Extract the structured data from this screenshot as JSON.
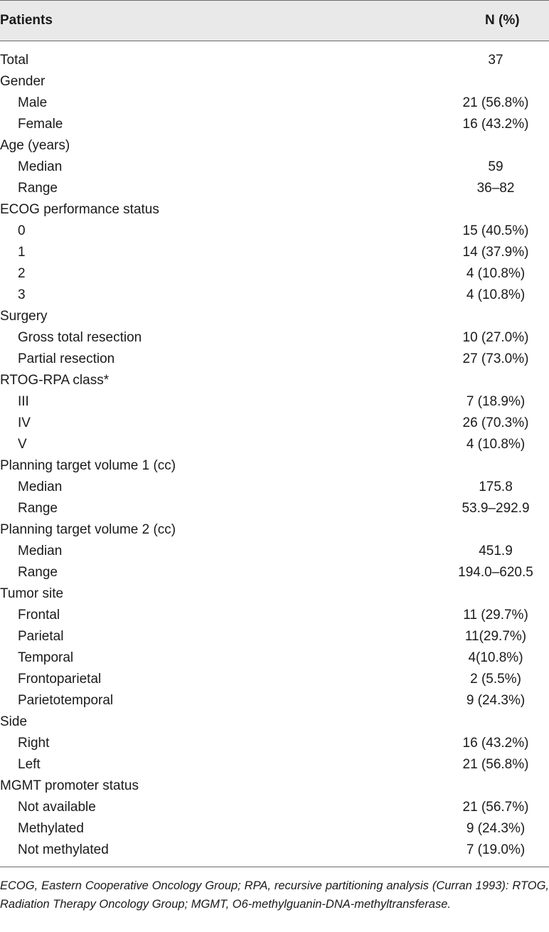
{
  "table": {
    "header": {
      "label": "Patients",
      "value": "N (%)"
    },
    "rows": [
      {
        "label": "Total",
        "value": "37",
        "indent": false
      },
      {
        "label": "Gender",
        "value": "",
        "indent": false
      },
      {
        "label": "Male",
        "value": "21 (56.8%)",
        "indent": true
      },
      {
        "label": "Female",
        "value": "16 (43.2%)",
        "indent": true
      },
      {
        "label": "Age (years)",
        "value": "",
        "indent": false
      },
      {
        "label": "Median",
        "value": "59",
        "indent": true
      },
      {
        "label": "Range",
        "value": "36–82",
        "indent": true
      },
      {
        "label": "ECOG performance status",
        "value": "",
        "indent": false
      },
      {
        "label": "0",
        "value": "15 (40.5%)",
        "indent": true
      },
      {
        "label": "1",
        "value": "14 (37.9%)",
        "indent": true
      },
      {
        "label": "2",
        "value": "4 (10.8%)",
        "indent": true
      },
      {
        "label": "3",
        "value": "4 (10.8%)",
        "indent": true
      },
      {
        "label": "Surgery",
        "value": "",
        "indent": false
      },
      {
        "label": "Gross total resection",
        "value": "10 (27.0%)",
        "indent": true
      },
      {
        "label": "Partial resection",
        "value": "27 (73.0%)",
        "indent": true
      },
      {
        "label": "RTOG-RPA class*",
        "value": "",
        "indent": false
      },
      {
        "label": "III",
        "value": "7 (18.9%)",
        "indent": true
      },
      {
        "label": "IV",
        "value": "26 (70.3%)",
        "indent": true
      },
      {
        "label": "V",
        "value": "4 (10.8%)",
        "indent": true
      },
      {
        "label": "Planning target volume 1 (cc)",
        "value": "",
        "indent": false
      },
      {
        "label": "Median",
        "value": "175.8",
        "indent": true
      },
      {
        "label": "Range",
        "value": "53.9–292.9",
        "indent": true
      },
      {
        "label": "Planning target volume 2 (cc)",
        "value": "",
        "indent": false
      },
      {
        "label": "Median",
        "value": "451.9",
        "indent": true
      },
      {
        "label": "Range",
        "value": "194.0–620.5",
        "indent": true
      },
      {
        "label": "Tumor site",
        "value": "",
        "indent": false
      },
      {
        "label": "Frontal",
        "value": "11 (29.7%)",
        "indent": true
      },
      {
        "label": "Parietal",
        "value": "11(29.7%)",
        "indent": true
      },
      {
        "label": "Temporal",
        "value": "4(10.8%)",
        "indent": true
      },
      {
        "label": "Frontoparietal",
        "value": "2 (5.5%)",
        "indent": true
      },
      {
        "label": "Parietotemporal",
        "value": "9 (24.3%)",
        "indent": true
      },
      {
        "label": "Side",
        "value": "",
        "indent": false
      },
      {
        "label": "Right",
        "value": "16 (43.2%)",
        "indent": true
      },
      {
        "label": "Left",
        "value": "21 (56.8%)",
        "indent": true
      },
      {
        "label": "MGMT promoter status",
        "value": "",
        "indent": false
      },
      {
        "label": "Not available",
        "value": "21 (56.7%)",
        "indent": true
      },
      {
        "label": "Methylated",
        "value": "9 (24.3%)",
        "indent": true
      },
      {
        "label": "Not methylated",
        "value": "7 (19.0%)",
        "indent": true
      }
    ],
    "footnote": "ECOG, Eastern Cooperative Oncology Group; RPA, recursive partitioning analysis (Curran 1993): RTOG, Radiation Therapy Oncology Group; MGMT, O6-methylguanin-DNA-methyltransferase."
  }
}
